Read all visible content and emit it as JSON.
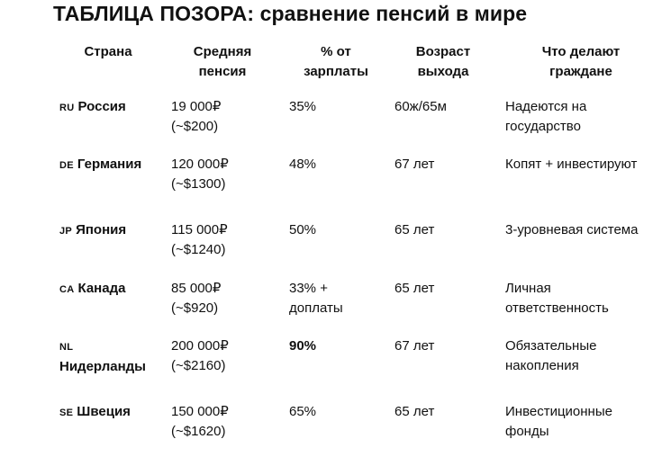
{
  "title": "ТАБЛИЦА ПОЗОРА: сравнение пенсий в мире",
  "headers": {
    "country": "Страна",
    "pension": [
      "Средняя",
      "пенсия"
    ],
    "percent": [
      "% от",
      "зарплаты"
    ],
    "age": [
      "Возраст",
      "выхода"
    ],
    "action": [
      "Что делают",
      "граждане"
    ]
  },
  "rows": [
    {
      "code": "RU",
      "country": [
        "Россия"
      ],
      "pension": [
        "19 000₽",
        "(~$200)"
      ],
      "percent": [
        "35%"
      ],
      "percent_bold": false,
      "age": "60ж/65м",
      "action": [
        "Надеются на",
        "государство"
      ]
    },
    {
      "code": "DE",
      "country": [
        "Германия"
      ],
      "pension": [
        "120 000₽",
        "(~$1300)"
      ],
      "percent": [
        "48%"
      ],
      "percent_bold": false,
      "age": "67 лет",
      "action": [
        "Копят + инвестируют"
      ]
    },
    {
      "code": "JP",
      "country": [
        "Япония"
      ],
      "pension": [
        "115 000₽",
        "(~$1240)"
      ],
      "percent": [
        "50%"
      ],
      "percent_bold": false,
      "age": "65 лет",
      "action": [
        "3-уровневая система"
      ]
    },
    {
      "code": "CA",
      "country": [
        "Канада"
      ],
      "pension": [
        "85 000₽",
        "(~$920)"
      ],
      "percent": [
        "33% +",
        "доплаты"
      ],
      "percent_bold": false,
      "age": "65 лет",
      "action": [
        "Личная",
        "ответственность"
      ]
    },
    {
      "code": "NL",
      "country": [
        "",
        "Нидерланды"
      ],
      "pension": [
        "200 000₽",
        "(~$2160)"
      ],
      "percent": [
        "90%"
      ],
      "percent_bold": true,
      "age": "67 лет",
      "action": [
        "Обязательные",
        "накопления"
      ]
    },
    {
      "code": "SE",
      "country": [
        "Швеция"
      ],
      "pension": [
        "150 000₽",
        "(~$1620)"
      ],
      "percent": [
        "65%"
      ],
      "percent_bold": false,
      "age": "65 лет",
      "action": [
        "Инвестиционные",
        "фонды"
      ]
    }
  ]
}
